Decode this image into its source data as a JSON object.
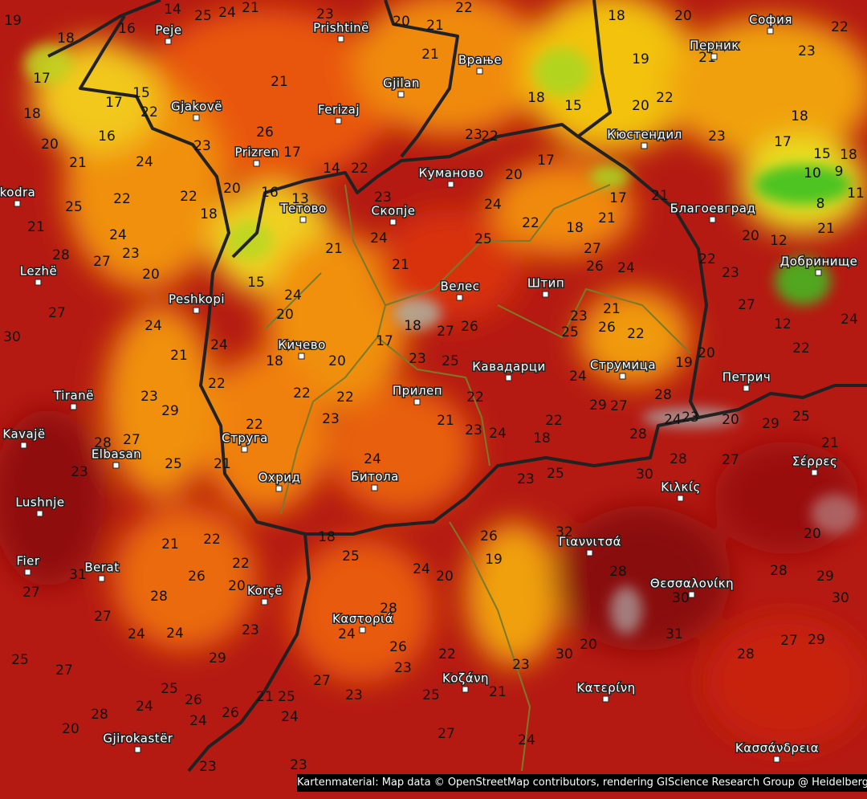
{
  "cities": [
    "Peje",
    "Prishtinë",
    "Gjilan",
    "Ferizaj",
    "Gjakovë",
    "Prizren",
    "Врање",
    "София",
    "Перник",
    "Кюстендил",
    "Куманово",
    "Тетово",
    "Скопје",
    "Благоевград",
    "kodra",
    "Lezhë",
    "Peshkopi",
    "Велес",
    "Штип",
    "Добринище",
    "Кичево",
    "Кавадарци",
    "Струмица",
    "Петрич",
    "Tiranë",
    "Прилеп",
    "Kavajë",
    "Elbasan",
    "Струга",
    "Охрид",
    "Битола",
    "Σέρρες",
    "Κιλκίς",
    "Lushnje",
    "Fier",
    "Berat",
    "Γιαννιτσά",
    "Θεσσαλονίκη",
    "Korçë",
    "Καστοριά",
    "Κοζάνη",
    "Κατερίνη",
    "Gjirokastër",
    "Κασσάνδρεια"
  ],
  "temperatures": [
    19,
    18,
    16,
    14,
    25,
    24,
    21,
    23,
    20,
    21,
    21,
    22,
    18,
    20,
    22,
    23,
    19,
    21,
    17,
    17,
    15,
    22,
    21,
    18,
    20,
    16,
    21,
    24,
    23,
    26,
    17,
    20,
    18,
    22,
    22,
    25,
    24,
    23,
    27,
    28,
    20,
    15,
    14,
    22,
    16,
    13,
    23,
    23,
    22,
    18,
    15,
    20,
    22,
    23,
    18,
    17,
    15,
    18,
    10,
    9,
    11,
    8,
    21,
    12,
    20,
    22,
    23,
    27,
    12,
    22,
    24,
    20,
    17,
    24,
    22,
    18,
    21,
    17,
    21,
    27,
    26,
    24,
    25,
    21,
    24,
    21,
    24,
    20,
    18,
    20,
    17,
    18,
    27,
    26,
    23,
    25,
    21,
    23,
    25,
    26,
    22,
    20,
    19,
    24,
    29,
    27,
    28,
    24,
    23,
    20,
    29,
    25,
    21,
    28,
    28,
    27,
    30,
    22,
    18,
    24,
    23,
    22,
    21,
    24,
    23,
    22,
    22,
    22,
    21,
    24,
    22,
    21,
    23,
    29,
    27,
    30,
    21,
    24,
    27,
    28,
    23,
    25,
    21,
    22,
    22,
    20,
    26,
    28,
    27,
    24,
    24,
    23,
    29,
    31,
    27,
    25,
    27,
    25,
    26,
    24,
    28,
    24,
    26,
    20,
    21,
    25,
    24,
    23,
    23,
    27,
    23,
    18,
    25,
    24,
    20,
    28,
    24,
    26,
    23,
    22,
    25,
    27,
    21,
    23,
    24,
    30,
    20,
    26,
    19,
    23,
    25,
    32,
    28,
    31,
    30,
    28,
    27,
    29,
    28,
    29,
    30,
    20
  ],
  "attribution": "Kartenmaterial: Map data © OpenStreetMap contributors, rendering GIScience Research Group @ Heidelberg University"
}
